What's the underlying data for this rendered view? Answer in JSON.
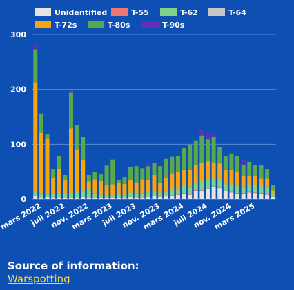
{
  "chart_data": {
    "type": "bar",
    "stacked": true,
    "ylim": [
      0,
      300
    ],
    "yticks": [
      0,
      100,
      200,
      300
    ],
    "grid": true,
    "legend_position": "top-left",
    "x": [
      "2022-02",
      "2022-03",
      "2022-04",
      "2022-05",
      "2022-06",
      "2022-07",
      "2022-08",
      "2022-09",
      "2022-10",
      "2022-11",
      "2022-12",
      "2023-01",
      "2023-02",
      "2023-03",
      "2023-04",
      "2023-05",
      "2023-06",
      "2023-07",
      "2023-08",
      "2023-09",
      "2023-10",
      "2023-11",
      "2023-12",
      "2024-01",
      "2024-02",
      "2024-03",
      "2024-04",
      "2024-05",
      "2024-06",
      "2024-07",
      "2024-08",
      "2024-09",
      "2024-10",
      "2024-11",
      "2024-12",
      "2025-01",
      "2025-02",
      "2025-03",
      "2025-04",
      "2025-05",
      "2025-06"
    ],
    "xtick_labels": [
      {
        "index": 1,
        "label": "mars 2022"
      },
      {
        "index": 5,
        "label": "juli 2022"
      },
      {
        "index": 9,
        "label": "nov. 2022"
      },
      {
        "index": 13,
        "label": "mars 2023"
      },
      {
        "index": 17,
        "label": "juli 2023"
      },
      {
        "index": 21,
        "label": "nov. 2023"
      },
      {
        "index": 25,
        "label": "mars 2024"
      },
      {
        "index": 29,
        "label": "juli 2024"
      },
      {
        "index": 33,
        "label": "nov. 2024"
      },
      {
        "index": 37,
        "label": "mars 2025"
      }
    ],
    "series": [
      {
        "name": "Unidentified",
        "color": "#e3e3e3",
        "values": [
          5,
          3,
          4,
          3,
          3,
          3,
          3,
          3,
          4,
          3,
          3,
          2,
          2,
          3,
          3,
          2,
          4,
          3,
          3,
          4,
          6,
          4,
          5,
          6,
          8,
          10,
          8,
          15,
          15,
          18,
          22,
          20,
          14,
          12,
          10,
          10,
          12,
          11,
          10,
          8,
          4
        ]
      },
      {
        "name": "T-55",
        "color": "#f07575",
        "values": [
          0,
          0,
          0,
          0,
          0,
          0,
          0,
          0,
          0,
          0,
          0,
          0,
          0,
          0,
          0,
          0,
          0,
          0,
          0,
          0,
          0,
          0,
          0,
          1,
          1,
          1,
          1,
          1,
          1,
          1,
          1,
          1,
          1,
          1,
          1,
          1,
          1,
          1,
          1,
          1,
          0
        ]
      },
      {
        "name": "T-62",
        "color": "#7fd28c",
        "values": [
          8,
          8,
          6,
          6,
          6,
          6,
          6,
          12,
          12,
          14,
          8,
          6,
          4,
          4,
          6,
          4,
          8,
          8,
          8,
          8,
          8,
          6,
          8,
          10,
          10,
          14,
          14,
          14,
          16,
          16,
          14,
          14,
          12,
          14,
          14,
          12,
          14,
          14,
          14,
          14,
          6
        ]
      },
      {
        "name": "T-64",
        "color": "#c7c7c7",
        "values": [
          0,
          0,
          0,
          0,
          0,
          0,
          0,
          0,
          0,
          0,
          0,
          0,
          0,
          0,
          0,
          0,
          0,
          0,
          0,
          0,
          0,
          0,
          0,
          0,
          0,
          0,
          0,
          0,
          0,
          0,
          0,
          0,
          0,
          0,
          0,
          0,
          0,
          0,
          0,
          0,
          0
        ]
      },
      {
        "name": "T-72s",
        "color": "#f5a512",
        "values": [
          200,
          110,
          100,
          30,
          45,
          25,
          120,
          75,
          55,
          15,
          25,
          25,
          20,
          20,
          20,
          22,
          22,
          18,
          25,
          22,
          30,
          20,
          25,
          30,
          30,
          28,
          30,
          32,
          34,
          34,
          30,
          30,
          26,
          26,
          24,
          20,
          16,
          16,
          12,
          14,
          6
        ]
      },
      {
        "name": "T-80s",
        "color": "#5aa84d",
        "values": [
          60,
          35,
          8,
          15,
          25,
          10,
          65,
          45,
          42,
          12,
          14,
          12,
          35,
          45,
          5,
          12,
          25,
          31,
          20,
          26,
          22,
          30,
          35,
          30,
          30,
          40,
          45,
          45,
          50,
          40,
          46,
          30,
          25,
          30,
          30,
          20,
          25,
          20,
          25,
          18,
          10
        ]
      },
      {
        "name": "T-90s",
        "color": "#5f31b8",
        "values": [
          6,
          0,
          0,
          0,
          0,
          0,
          5,
          0,
          0,
          0,
          0,
          0,
          0,
          0,
          0,
          0,
          0,
          0,
          0,
          5,
          1,
          0,
          0,
          0,
          0,
          0,
          0,
          0,
          10,
          12,
          7,
          0,
          0,
          0,
          0,
          8,
          0,
          0,
          0,
          0,
          0
        ]
      }
    ],
    "legend": [
      {
        "name": "Unidentified",
        "color": "#e3e3e3"
      },
      {
        "name": "T-55",
        "color": "#f07575"
      },
      {
        "name": "T-62",
        "color": "#7fd28c"
      },
      {
        "name": "T-64",
        "color": "#c7c7c7"
      },
      {
        "name": "T-72s",
        "color": "#f5a512"
      },
      {
        "name": "T-80s",
        "color": "#5aa84d"
      },
      {
        "name": "T-90s",
        "color": "#5f31b8"
      }
    ]
  },
  "source": {
    "label": "Source of information:",
    "link_text": "Warspotting"
  },
  "colors": {
    "background": "#0d4fb3",
    "grid": "#5a8ad6",
    "link": "#f5d64a"
  }
}
